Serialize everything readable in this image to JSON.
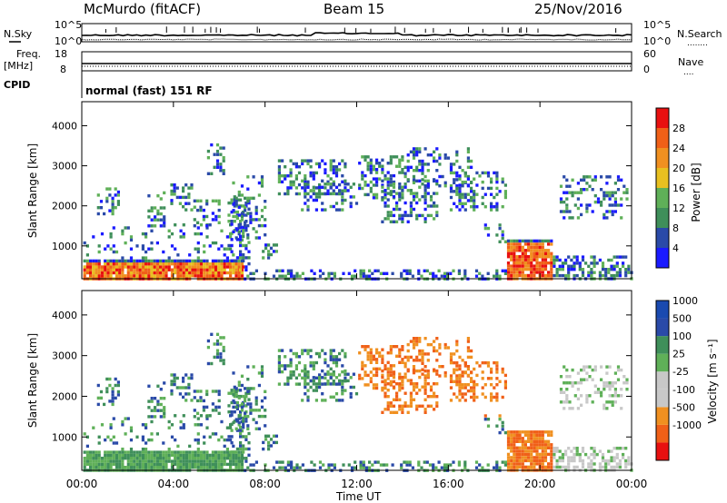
{
  "header": {
    "station": "McMurdo (fitACF)",
    "beam": "Beam 15",
    "date": "25/Nov/2016"
  },
  "side_labels": {
    "nsky": "N.Sky",
    "freq": "Freq.",
    "mhz": "[MHz]",
    "cpid": "CPID",
    "nsearch": "N.Search",
    "nsearch_dots": "........",
    "nave": "Nave",
    "nave_dots": "....",
    "nsky_ticks": [
      "10^5",
      "10^0"
    ],
    "nsearch_ticks": [
      "10^5",
      "10^0"
    ],
    "freq_ticks": [
      "18",
      "8"
    ],
    "nave_ticks": [
      "60",
      "0"
    ]
  },
  "cpid_text": "normal (fast) 151 RF",
  "colors": {
    "power": [
      "#1a1aff",
      "#2a4aa8",
      "#3f8f5a",
      "#5fb058",
      "#e8c020",
      "#f09020",
      "#f06018",
      "#e81010"
    ],
    "velocity": [
      "#e81010",
      "#f06018",
      "#f09020",
      "#c8c8c8",
      "#c8c8c8",
      "#5fb058",
      "#3f8f5a",
      "#2a4aa8",
      "#1a4ab0"
    ]
  },
  "chart_data": [
    {
      "type": "heatmap",
      "ylabel": "Slant Range [km]",
      "xlabel": "",
      "yticks": [
        "1000",
        "2000",
        "3000",
        "4000"
      ],
      "ylim": [
        180,
        4600
      ],
      "colorbar": {
        "label": "Power [dB]",
        "ticks": [
          "4",
          "8",
          "12",
          "16",
          "20",
          "24",
          "28"
        ],
        "range": [
          0,
          32
        ]
      }
    },
    {
      "type": "heatmap",
      "ylabel": "Slant Range [km]",
      "xlabel": "Time UT",
      "xticks": [
        "00:00",
        "04:00",
        "08:00",
        "12:00",
        "16:00",
        "20:00",
        "00:00"
      ],
      "yticks": [
        "1000",
        "2000",
        "3000",
        "4000"
      ],
      "ylim": [
        180,
        4600
      ],
      "colorbar": {
        "label": "Velocity [m s⁻¹]",
        "ticks": [
          "1000",
          "500",
          "100",
          "25",
          "-25",
          "-100",
          "-500",
          "-1000"
        ]
      }
    }
  ]
}
